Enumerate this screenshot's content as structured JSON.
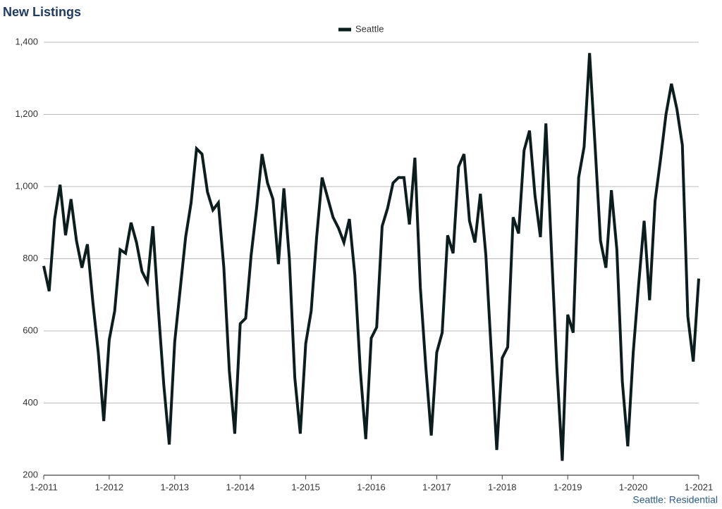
{
  "chart_data": {
    "type": "line",
    "title": "New Listings",
    "footnote": "Seattle: Residential",
    "categories": [
      "1-2011",
      null,
      null,
      null,
      null,
      null,
      null,
      null,
      null,
      null,
      null,
      null,
      "1-2012",
      null,
      null,
      null,
      null,
      null,
      null,
      null,
      null,
      null,
      null,
      null,
      "1-2013",
      null,
      null,
      null,
      null,
      null,
      null,
      null,
      null,
      null,
      null,
      null,
      "1-2014",
      null,
      null,
      null,
      null,
      null,
      null,
      null,
      null,
      null,
      null,
      null,
      "1-2015",
      null,
      null,
      null,
      null,
      null,
      null,
      null,
      null,
      null,
      null,
      null,
      "1-2016",
      null,
      null,
      null,
      null,
      null,
      null,
      null,
      null,
      null,
      null,
      null,
      "1-2017",
      null,
      null,
      null,
      null,
      null,
      null,
      null,
      null,
      null,
      null,
      null,
      "1-2018",
      null,
      null,
      null,
      null,
      null,
      null,
      null,
      null,
      null,
      null,
      null,
      "1-2019",
      null,
      null,
      null,
      null,
      null,
      null,
      null,
      null,
      null,
      null,
      null,
      "1-2020",
      null,
      null,
      null,
      null,
      null,
      null,
      null,
      null,
      null,
      null,
      null,
      "1-2021"
    ],
    "series": [
      {
        "name": "Seattle",
        "color": "#0c1d1d",
        "values": [
          780,
          710,
          910,
          1005,
          865,
          965,
          850,
          775,
          840,
          680,
          540,
          350,
          575,
          655,
          825,
          815,
          900,
          845,
          765,
          735,
          890,
          660,
          450,
          285,
          570,
          715,
          860,
          955,
          1105,
          1090,
          985,
          935,
          955,
          775,
          490,
          315,
          620,
          635,
          810,
          940,
          1090,
          1010,
          965,
          785,
          995,
          800,
          470,
          315,
          565,
          655,
          860,
          1025,
          970,
          915,
          885,
          845,
          910,
          755,
          490,
          300,
          580,
          610,
          890,
          940,
          1010,
          1025,
          1025,
          895,
          1080,
          720,
          500,
          310,
          540,
          595,
          865,
          815,
          1055,
          1090,
          905,
          845,
          980,
          810,
          540,
          270,
          525,
          555,
          915,
          870,
          1100,
          1155,
          975,
          860,
          1175,
          830,
          500,
          240,
          645,
          595,
          1025,
          1110,
          1370,
          1115,
          850,
          775,
          990,
          825,
          460,
          280,
          540,
          730,
          905,
          685,
          960,
          1075,
          1200,
          1285,
          1215,
          1115,
          640,
          515,
          745
        ]
      }
    ],
    "ylim": [
      200,
      1400
    ],
    "yticks": [
      200,
      400,
      600,
      800,
      {
        "value": 1000,
        "label": "1,000"
      },
      {
        "value": 1200,
        "label": "1,200"
      },
      {
        "value": 1400,
        "label": "1,400"
      }
    ],
    "grid": true,
    "legend": "top"
  }
}
